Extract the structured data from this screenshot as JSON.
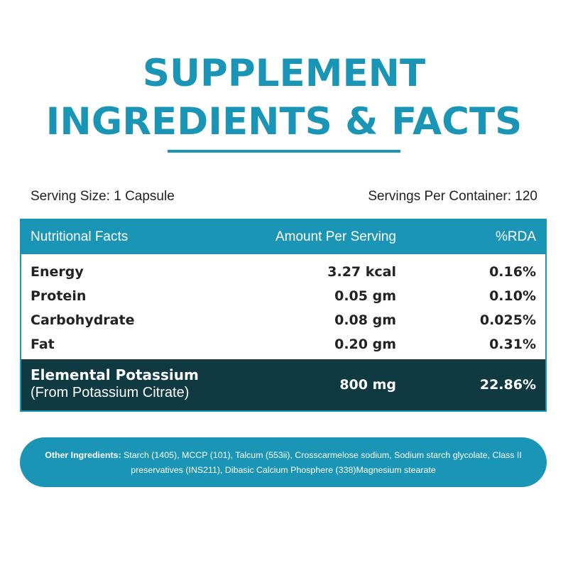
{
  "title": {
    "line1": "SUPPLEMENT",
    "line2": "INGREDIENTS & FACTS"
  },
  "serving": {
    "size": "Serving Size: 1 Capsule",
    "per_container": "Servings Per Container: 120"
  },
  "table": {
    "headers": [
      "Nutritional Facts",
      "Amount Per Serving",
      "%RDA"
    ],
    "rows": [
      {
        "name": "Energy",
        "amount": "3.27 kcal",
        "rda": "0.16%"
      },
      {
        "name": "Protein",
        "amount": "0.05 gm",
        "rda": "0.10%"
      },
      {
        "name": "Carbohydrate",
        "amount": "0.08 gm",
        "rda": "0.025%"
      },
      {
        "name": "Fat",
        "amount": "0.20 gm",
        "rda": "0.31%"
      }
    ],
    "featured": {
      "name": "Elemental Potassium",
      "source": "(From Potassium Citrate)",
      "amount": "800 mg",
      "rda": "22.86%"
    }
  },
  "other_ingredients": {
    "label": "Other Ingredients:",
    "text": " Starch (1405), MCCP (101), Talcum (553ii), Crosscarmelose sodium, Sodium starch glycolate, Class II preservatives (INS211), Dibasic Calcium Phosphere (338)Magnesium stearate"
  },
  "colors": {
    "accent": "#1b95b6",
    "dark": "#0f3a42"
  }
}
